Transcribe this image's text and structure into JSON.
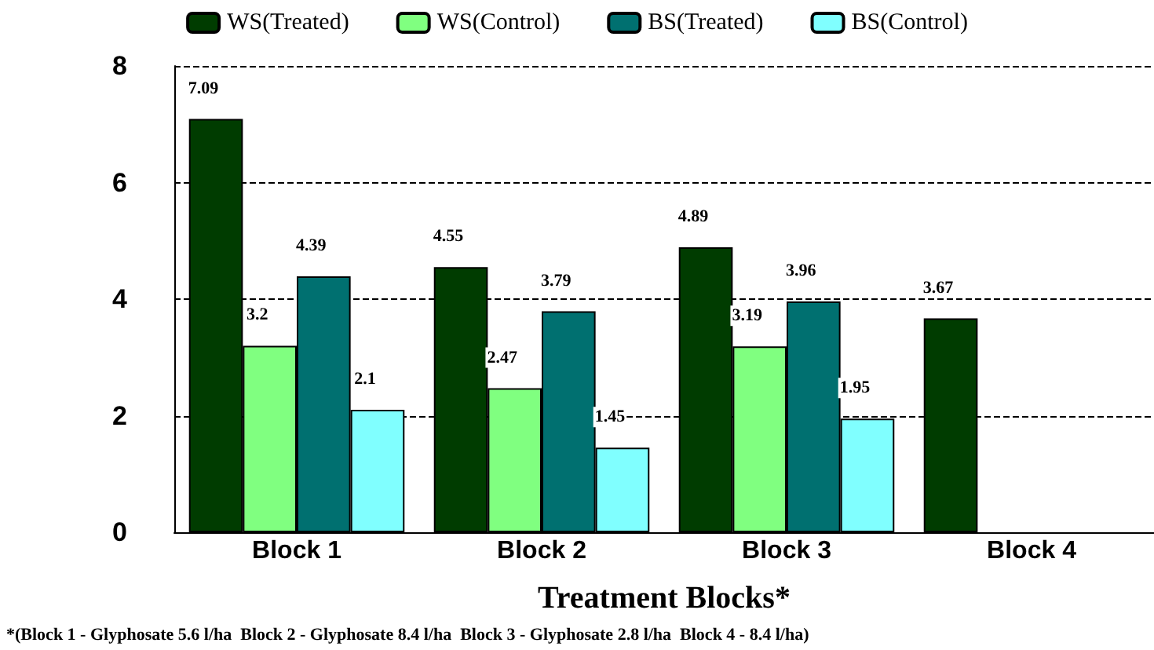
{
  "chart_data": {
    "type": "bar",
    "xlabel": "Treatment Blocks*",
    "annotations": [
      "*(Block 1 - Glyphosate 5.6 l/ha  Block 2 - Glyphosate 8.4 l/ha  Block 3 - Glyphosate 2.8 l/ha  Block 4 - 8.4 l/ha)"
    ],
    "categories": [
      "Block 1",
      "Block 2",
      "Block 3",
      "Block 4"
    ],
    "series": [
      {
        "name": "WS(Treated)",
        "color": "#003c00",
        "values": [
          7.09,
          4.55,
          4.89,
          3.67
        ]
      },
      {
        "name": "WS(Control)",
        "color": "#80ff80",
        "values": [
          3.2,
          2.47,
          3.19,
          null
        ]
      },
      {
        "name": "BS(Treated)",
        "color": "#007070",
        "values": [
          4.39,
          3.79,
          3.96,
          null
        ]
      },
      {
        "name": "BS(Control)",
        "color": "#80ffff",
        "values": [
          2.1,
          1.45,
          1.95,
          null
        ]
      }
    ],
    "ylim": [
      0,
      8
    ],
    "yticks": [
      0,
      2,
      4,
      6,
      8
    ],
    "grid": "y",
    "legend": "top",
    "data_labels": true
  }
}
